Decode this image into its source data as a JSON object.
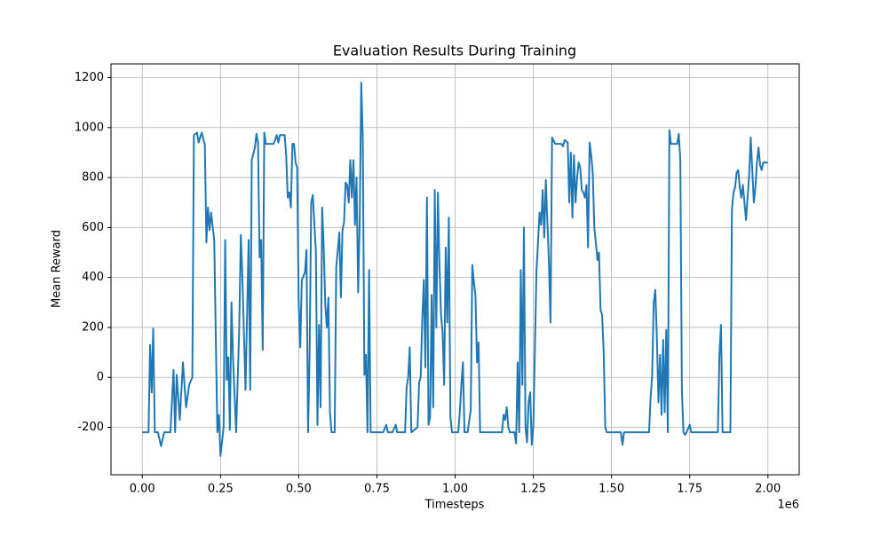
{
  "chart_data": {
    "type": "line",
    "title": "Evaluation Results During Training",
    "xlabel": "Timesteps",
    "ylabel": "Mean Reward",
    "x_offset_label": "1e6",
    "x": [
      0,
      10000,
      20000,
      25000,
      30000,
      35000,
      40000,
      50000,
      60000,
      70000,
      90000,
      100000,
      105000,
      110000,
      120000,
      130000,
      140000,
      150000,
      160000,
      165000,
      175000,
      180000,
      190000,
      200000,
      205000,
      210000,
      215000,
      220000,
      230000,
      240000,
      245000,
      250000,
      260000,
      265000,
      270000,
      275000,
      280000,
      285000,
      290000,
      300000,
      310000,
      315000,
      320000,
      330000,
      340000,
      345000,
      350000,
      360000,
      365000,
      370000,
      375000,
      380000,
      385000,
      390000,
      395000,
      420000,
      430000,
      435000,
      440000,
      455000,
      460000,
      465000,
      470000,
      475000,
      480000,
      485000,
      490000,
      495000,
      500000,
      505000,
      510000,
      520000,
      525000,
      530000,
      535000,
      540000,
      545000,
      550000,
      555000,
      560000,
      565000,
      570000,
      575000,
      580000,
      585000,
      590000,
      595000,
      600000,
      605000,
      615000,
      620000,
      630000,
      635000,
      640000,
      645000,
      650000,
      655000,
      660000,
      665000,
      670000,
      675000,
      680000,
      685000,
      690000,
      695000,
      700000,
      705000,
      710000,
      715000,
      720000,
      725000,
      730000,
      750000,
      770000,
      780000,
      785000,
      800000,
      810000,
      815000,
      840000,
      845000,
      850000,
      855000,
      860000,
      880000,
      885000,
      890000,
      895000,
      900000,
      905000,
      910000,
      915000,
      920000,
      925000,
      930000,
      935000,
      940000,
      945000,
      950000,
      955000,
      960000,
      965000,
      970000,
      975000,
      980000,
      985000,
      990000,
      1010000,
      1015000,
      1020000,
      1025000,
      1030000,
      1040000,
      1050000,
      1055000,
      1060000,
      1065000,
      1070000,
      1075000,
      1080000,
      1100000,
      1130000,
      1150000,
      1155000,
      1160000,
      1165000,
      1170000,
      1175000,
      1190000,
      1195000,
      1200000,
      1205000,
      1210000,
      1215000,
      1220000,
      1225000,
      1230000,
      1235000,
      1240000,
      1245000,
      1250000,
      1260000,
      1270000,
      1275000,
      1280000,
      1285000,
      1290000,
      1295000,
      1300000,
      1305000,
      1310000,
      1320000,
      1340000,
      1345000,
      1350000,
      1360000,
      1365000,
      1370000,
      1375000,
      1380000,
      1385000,
      1390000,
      1395000,
      1400000,
      1405000,
      1410000,
      1415000,
      1420000,
      1425000,
      1430000,
      1435000,
      1440000,
      1445000,
      1450000,
      1455000,
      1460000,
      1465000,
      1470000,
      1475000,
      1480000,
      1485000,
      1510000,
      1530000,
      1535000,
      1540000,
      1580000,
      1620000,
      1625000,
      1630000,
      1635000,
      1640000,
      1645000,
      1650000,
      1655000,
      1660000,
      1665000,
      1670000,
      1675000,
      1680000,
      1685000,
      1690000,
      1710000,
      1715000,
      1720000,
      1725000,
      1730000,
      1735000,
      1740000,
      1750000,
      1755000,
      1800000,
      1840000,
      1845000,
      1850000,
      1855000,
      1880000,
      1885000,
      1890000,
      1895000,
      1900000,
      1905000,
      1910000,
      1915000,
      1920000,
      1930000,
      1940000,
      1945000,
      1955000,
      1960000,
      1965000,
      1970000,
      1975000,
      1980000,
      1985000,
      2000000
    ],
    "series": [
      {
        "name": "Mean Reward",
        "color": "#1f77b4",
        "values": [
          -220,
          -220,
          -220,
          130,
          -60,
          195,
          -220,
          -220,
          -275,
          -220,
          -220,
          30,
          -220,
          10,
          -170,
          60,
          -120,
          -30,
          0,
          970,
          980,
          940,
          980,
          930,
          540,
          680,
          590,
          660,
          550,
          -220,
          -150,
          -315,
          -200,
          550,
          -10,
          80,
          -210,
          300,
          80,
          -220,
          200,
          570,
          400,
          -50,
          550,
          -50,
          870,
          920,
          975,
          940,
          480,
          550,
          110,
          980,
          935,
          935,
          970,
          940,
          970,
          970,
          890,
          720,
          740,
          680,
          935,
          935,
          860,
          840,
          300,
          120,
          390,
          420,
          510,
          -220,
          100,
          700,
          730,
          620,
          500,
          -190,
          210,
          -120,
          680,
          520,
          290,
          200,
          320,
          -140,
          -220,
          -220,
          440,
          580,
          320,
          590,
          620,
          780,
          770,
          700,
          870,
          720,
          870,
          610,
          800,
          340,
          620,
          1180,
          950,
          10,
          90,
          -220,
          430,
          -220,
          -220,
          -220,
          -190,
          -220,
          -220,
          -190,
          -220,
          -220,
          -40,
          0,
          120,
          -220,
          -200,
          -20,
          0,
          230,
          390,
          40,
          720,
          -190,
          -160,
          330,
          -120,
          750,
          200,
          740,
          450,
          250,
          180,
          -30,
          520,
          220,
          640,
          -160,
          -220,
          -220,
          -140,
          -30,
          60,
          -220,
          -220,
          -130,
          450,
          380,
          330,
          60,
          140,
          -220,
          -220,
          -220,
          -220,
          -150,
          -170,
          -120,
          -200,
          -220,
          -220,
          -265,
          60,
          -220,
          430,
          -30,
          600,
          -200,
          -260,
          -100,
          -60,
          -270,
          -200,
          420,
          660,
          610,
          750,
          560,
          790,
          620,
          460,
          220,
          960,
          935,
          935,
          925,
          950,
          940,
          700,
          900,
          640,
          890,
          700,
          800,
          860,
          840,
          750,
          740,
          720,
          770,
          520,
          940,
          890,
          820,
          600,
          540,
          470,
          500,
          270,
          250,
          100,
          -200,
          -220,
          -220,
          -220,
          -270,
          -220,
          -220,
          -220,
          -80,
          10,
          300,
          350,
          160,
          -100,
          90,
          -150,
          150,
          -140,
          190,
          -220,
          990,
          935,
          935,
          975,
          870,
          -50,
          -220,
          -230,
          -220,
          -190,
          -220,
          -220,
          -220,
          90,
          210,
          -220,
          -220,
          670,
          740,
          760,
          820,
          830,
          760,
          720,
          770,
          630,
          810,
          960,
          700,
          760,
          860,
          920,
          850,
          830,
          860,
          860
        ]
      }
    ],
    "xlim": [
      -100000,
      2100000
    ],
    "xticks": [
      {
        "value": 0,
        "label": "0.00"
      },
      {
        "value": 250000,
        "label": "0.25"
      },
      {
        "value": 500000,
        "label": "0.50"
      },
      {
        "value": 750000,
        "label": "0.75"
      },
      {
        "value": 1000000,
        "label": "1.00"
      },
      {
        "value": 1250000,
        "label": "1.25"
      },
      {
        "value": 1500000,
        "label": "1.50"
      },
      {
        "value": 1750000,
        "label": "1.75"
      },
      {
        "value": 2000000,
        "label": "2.00"
      }
    ],
    "ylim": [
      -390,
      1255
    ],
    "yticks": [
      -200,
      0,
      200,
      400,
      600,
      800,
      1000,
      1200
    ],
    "grid": true
  }
}
